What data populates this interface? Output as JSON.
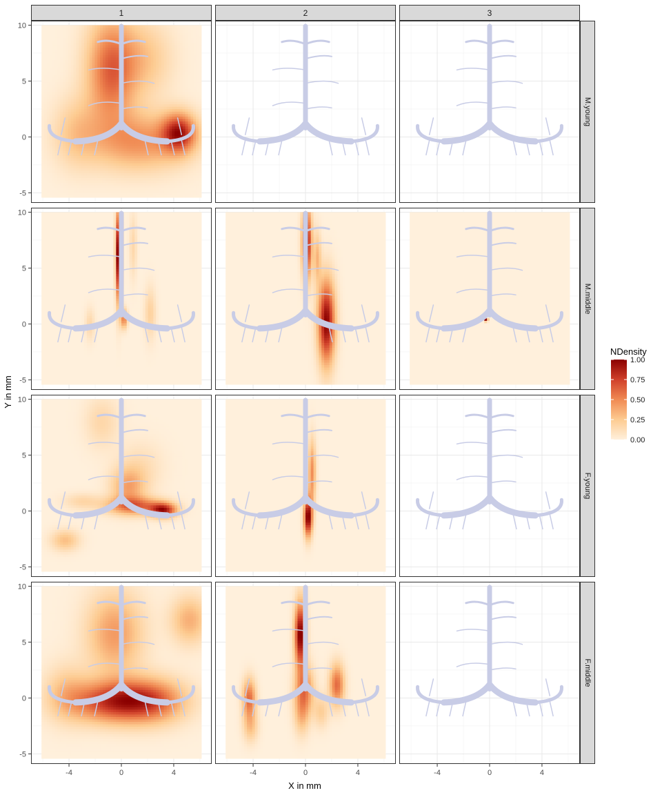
{
  "chart_data": {
    "type": "heatmap",
    "title": "",
    "xlabel": "X in mm",
    "ylabel": "Y in mm",
    "xlim": [
      -6.9,
      6.9
    ],
    "ylim": [
      -5.9,
      10.4
    ],
    "x_ticks": [
      -4,
      0,
      4
    ],
    "y_ticks": [
      -5,
      0,
      5,
      10
    ],
    "grid": true,
    "column_strips": [
      "1",
      "2",
      "3"
    ],
    "row_strips": [
      "M.young",
      "M.middle",
      "F.young",
      "F.middle"
    ],
    "legend": {
      "title": "NDensity",
      "position": "right",
      "breaks": [
        "1.00",
        "0.75",
        "0.50",
        "0.25",
        "0.00"
      ],
      "break_values": [
        1.0,
        0.75,
        0.5,
        0.25,
        0.0
      ],
      "range": [
        0,
        1
      ],
      "colors": [
        "#fff0dc",
        "#fdcb91",
        "#f08a53",
        "#d0402a",
        "#8b0000"
      ]
    },
    "density_extent": {
      "x": [
        -6.1,
        6.1
      ],
      "y": [
        -5.4,
        10.0
      ]
    },
    "panels": [
      {
        "row": "M.young",
        "col": "1",
        "has_density": true,
        "blobs": [
          {
            "x": -0.8,
            "y": 6.0,
            "sx": 1.3,
            "sy": 3.4,
            "w": 0.75
          },
          {
            "x": 4.4,
            "y": 0.4,
            "sx": 0.9,
            "sy": 1.2,
            "w": 0.95
          },
          {
            "x": 1.5,
            "y": -0.4,
            "sx": 2.5,
            "sy": 1.8,
            "w": 0.55
          },
          {
            "x": -3.4,
            "y": 0.4,
            "sx": 1.3,
            "sy": 2.2,
            "w": 0.3
          },
          {
            "x": 1.8,
            "y": 7.0,
            "sx": 1.5,
            "sy": 2.4,
            "w": 0.3
          }
        ]
      },
      {
        "row": "M.young",
        "col": "2",
        "has_density": false,
        "blobs": []
      },
      {
        "row": "M.young",
        "col": "3",
        "has_density": false,
        "blobs": []
      },
      {
        "row": "M.middle",
        "col": "1",
        "has_density": true,
        "blobs": [
          {
            "x": -0.2,
            "y": 6.2,
            "sx": 0.15,
            "sy": 2.8,
            "w": 0.9
          },
          {
            "x": 0.2,
            "y": 0.5,
            "sx": 0.18,
            "sy": 0.6,
            "w": 0.4
          },
          {
            "x": 2.2,
            "y": 1.0,
            "sx": 0.3,
            "sy": 1.6,
            "w": 0.15
          },
          {
            "x": -2.4,
            "y": 0.0,
            "sx": 0.25,
            "sy": 1.0,
            "w": 0.12
          },
          {
            "x": 0.9,
            "y": 7.0,
            "sx": 0.2,
            "sy": 2.0,
            "w": 0.12
          }
        ]
      },
      {
        "row": "M.middle",
        "col": "2",
        "has_density": true,
        "blobs": [
          {
            "x": 0.1,
            "y": 7.3,
            "sx": 0.25,
            "sy": 2.2,
            "w": 0.95
          },
          {
            "x": 1.6,
            "y": 0.2,
            "sx": 0.45,
            "sy": 2.6,
            "w": 0.95
          },
          {
            "x": 0.9,
            "y": 6.0,
            "sx": 0.2,
            "sy": 1.6,
            "w": 0.3
          }
        ]
      },
      {
        "row": "M.middle",
        "col": "3",
        "has_density": true,
        "blobs": [
          {
            "x": -0.25,
            "y": 0.4,
            "sx": 0.08,
            "sy": 0.1,
            "w": 1.0
          }
        ]
      },
      {
        "row": "F.young",
        "col": "1",
        "has_density": true,
        "blobs": [
          {
            "x": 3.2,
            "y": 0.1,
            "sx": 0.7,
            "sy": 0.45,
            "w": 1.0
          },
          {
            "x": 1.0,
            "y": 0.5,
            "sx": 1.5,
            "sy": 0.55,
            "w": 0.7
          },
          {
            "x": 0.5,
            "y": 2.2,
            "sx": 0.9,
            "sy": 1.2,
            "w": 0.45
          },
          {
            "x": -4.3,
            "y": -2.6,
            "sx": 0.75,
            "sy": 0.65,
            "w": 0.35
          },
          {
            "x": -3.0,
            "y": 0.9,
            "sx": 1.0,
            "sy": 0.5,
            "w": 0.2
          },
          {
            "x": -1.5,
            "y": 8.0,
            "sx": 0.9,
            "sy": 1.6,
            "w": 0.2
          },
          {
            "x": 1.5,
            "y": 4.0,
            "sx": 1.2,
            "sy": 1.6,
            "w": 0.15
          }
        ]
      },
      {
        "row": "F.young",
        "col": "2",
        "has_density": true,
        "blobs": [
          {
            "x": 0.2,
            "y": -0.5,
            "sx": 0.22,
            "sy": 1.2,
            "w": 1.0
          },
          {
            "x": 0.5,
            "y": 3.5,
            "sx": 0.2,
            "sy": 2.0,
            "w": 0.45
          }
        ]
      },
      {
        "row": "F.young",
        "col": "3",
        "has_density": false,
        "blobs": []
      },
      {
        "row": "F.middle",
        "col": "1",
        "has_density": true,
        "blobs": [
          {
            "x": -0.5,
            "y": -0.3,
            "sx": 2.3,
            "sy": 1.3,
            "w": 1.0
          },
          {
            "x": 2.5,
            "y": -0.2,
            "sx": 1.8,
            "sy": 1.4,
            "w": 0.6
          },
          {
            "x": -0.5,
            "y": 5.8,
            "sx": 1.5,
            "sy": 2.6,
            "w": 0.55
          },
          {
            "x": 5.2,
            "y": 7.0,
            "sx": 1.0,
            "sy": 1.5,
            "w": 0.45
          },
          {
            "x": -4.2,
            "y": 0.5,
            "sx": 1.2,
            "sy": 1.8,
            "w": 0.3
          }
        ]
      },
      {
        "row": "F.middle",
        "col": "2",
        "has_density": true,
        "blobs": [
          {
            "x": -0.4,
            "y": 5.7,
            "sx": 0.3,
            "sy": 2.0,
            "w": 0.95
          },
          {
            "x": 2.4,
            "y": 1.2,
            "sx": 0.4,
            "sy": 1.3,
            "w": 0.55
          },
          {
            "x": -4.3,
            "y": 0.0,
            "sx": 0.35,
            "sy": 1.2,
            "w": 0.55
          },
          {
            "x": -0.1,
            "y": 0.8,
            "sx": 0.5,
            "sy": 1.5,
            "w": 0.5
          },
          {
            "x": -0.3,
            "y": -1.5,
            "sx": 0.4,
            "sy": 1.3,
            "w": 0.25
          },
          {
            "x": -4.2,
            "y": -2.5,
            "sx": 0.4,
            "sy": 1.0,
            "w": 0.25
          },
          {
            "x": 1.2,
            "y": -1.2,
            "sx": 0.4,
            "sy": 1.0,
            "w": 0.2
          }
        ]
      },
      {
        "row": "F.middle",
        "col": "3",
        "has_density": false,
        "blobs": []
      }
    ],
    "overlay_color": "#c8cce6"
  }
}
